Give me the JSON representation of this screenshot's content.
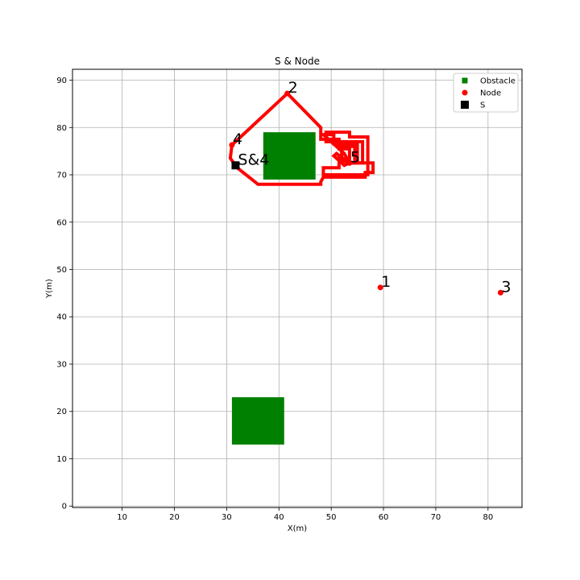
{
  "chart_data": {
    "type": "scatter",
    "title": "S & Node",
    "xlabel": "X(m)",
    "ylabel": "Y(m)",
    "xlim": [
      0.5,
      86.5
    ],
    "ylim": [
      -0.3,
      92.3
    ],
    "xticks": [
      10,
      20,
      30,
      40,
      50,
      60,
      70,
      80
    ],
    "yticks": [
      0,
      10,
      20,
      30,
      40,
      50,
      60,
      70,
      80,
      90
    ],
    "grid": true,
    "legend": {
      "placement": "top-right",
      "entries": [
        {
          "label": "Obstacle",
          "marker": "square",
          "color": "#008000"
        },
        {
          "label": "Node",
          "marker": "circle",
          "color": "#ff0000"
        },
        {
          "label": "S",
          "marker": "square",
          "color": "#000000"
        }
      ]
    },
    "obstacles": [
      {
        "x0": 37,
        "x1": 47,
        "y0": 69,
        "y1": 79
      },
      {
        "x0": 31,
        "x1": 41,
        "y0": 13,
        "y1": 23
      }
    ],
    "nodes": [
      {
        "label": "1",
        "x": 59.4,
        "y": 46.2
      },
      {
        "label": "2",
        "x": 41.6,
        "y": 87.2
      },
      {
        "label": "3",
        "x": 82.4,
        "y": 45.1
      },
      {
        "label": "4",
        "x": 31.0,
        "y": 76.3
      },
      {
        "label": "5",
        "x": 53.5,
        "y": 72.5
      }
    ],
    "start": {
      "label": "S&4",
      "x": 31.7,
      "y": 72.0
    },
    "path_color": "#ff0000",
    "paths": [
      [
        [
          31.7,
          72.0
        ],
        [
          30.7,
          73.5
        ],
        [
          31.0,
          76.3
        ],
        [
          41.6,
          87.2
        ],
        [
          48.0,
          80.0
        ],
        [
          48.0,
          77.5
        ],
        [
          51.5,
          77.5
        ],
        [
          51.5,
          75.5
        ],
        [
          53.5,
          75.5
        ],
        [
          53.5,
          72.5
        ]
      ],
      [
        [
          53.5,
          72.5
        ],
        [
          55.0,
          72.5
        ],
        [
          55.0,
          76.5
        ],
        [
          50.5,
          76.5
        ],
        [
          50.5,
          78.5
        ],
        [
          48.5,
          78.5
        ],
        [
          49.5,
          77.5
        ],
        [
          52.5,
          74.5
        ],
        [
          53.5,
          72.5
        ]
      ],
      [
        [
          53.5,
          72.5
        ],
        [
          56.0,
          72.5
        ],
        [
          56.0,
          77.0
        ],
        [
          49.0,
          77.0
        ],
        [
          49.0,
          79.0
        ],
        [
          53.5,
          79.0
        ],
        [
          53.5,
          78.0
        ],
        [
          57.0,
          78.0
        ],
        [
          57.0,
          70.0
        ],
        [
          48.5,
          70.0
        ],
        [
          48.5,
          71.5
        ],
        [
          51.5,
          71.5
        ],
        [
          51.5,
          74.0
        ],
        [
          53.5,
          72.5
        ]
      ],
      [
        [
          53.5,
          72.5
        ],
        [
          54.5,
          72.5
        ],
        [
          54.5,
          76.0
        ],
        [
          52.0,
          76.0
        ],
        [
          52.0,
          73.0
        ],
        [
          53.5,
          72.5
        ]
      ],
      [
        [
          53.5,
          72.5
        ],
        [
          52.5,
          72.0
        ],
        [
          50.5,
          74.0
        ],
        [
          51.0,
          74.5
        ],
        [
          53.5,
          72.5
        ]
      ],
      [
        [
          53.5,
          72.5
        ],
        [
          58.0,
          72.5
        ],
        [
          58.0,
          70.5
        ],
        [
          56.5,
          70.5
        ],
        [
          56.5,
          69.5
        ],
        [
          48.5,
          69.5
        ],
        [
          48.0,
          68.5
        ],
        [
          48.0,
          68.0
        ],
        [
          36.0,
          68.0
        ],
        [
          32.0,
          71.5
        ],
        [
          31.7,
          72.0
        ]
      ]
    ]
  }
}
